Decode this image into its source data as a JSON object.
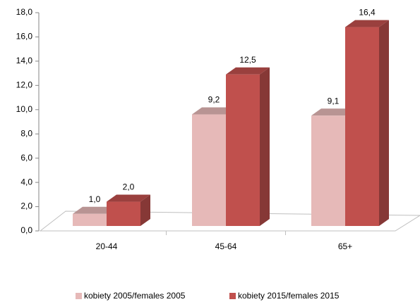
{
  "chart_data": {
    "type": "bar3d",
    "categories": [
      "20-44",
      "45-64",
      "65+"
    ],
    "series": [
      {
        "name": "kobiety 2005/females 2005",
        "color": "#e6b9b8",
        "values": [
          1.0,
          9.2,
          9.1
        ],
        "value_labels": [
          "1,0",
          "9,2",
          "9,1"
        ]
      },
      {
        "name": "kobiety 2015/females 2015",
        "color": "#c0504d",
        "values": [
          2.0,
          12.5,
          16.4
        ],
        "value_labels": [
          "2,0",
          "12,5",
          "16,4"
        ]
      }
    ],
    "ylim": [
      0,
      18
    ],
    "yticks": [
      {
        "value": 0,
        "label": "0,0"
      },
      {
        "value": 2,
        "label": "2,0"
      },
      {
        "value": 4,
        "label": "4,0"
      },
      {
        "value": 6,
        "label": "6,0"
      },
      {
        "value": 8,
        "label": "8,0"
      },
      {
        "value": 10,
        "label": "10,0"
      },
      {
        "value": 12,
        "label": "12,0"
      },
      {
        "value": 14,
        "label": "14,0"
      },
      {
        "value": 16,
        "label": "16,0"
      },
      {
        "value": 18,
        "label": "18,0"
      }
    ],
    "legend": "bottom"
  }
}
